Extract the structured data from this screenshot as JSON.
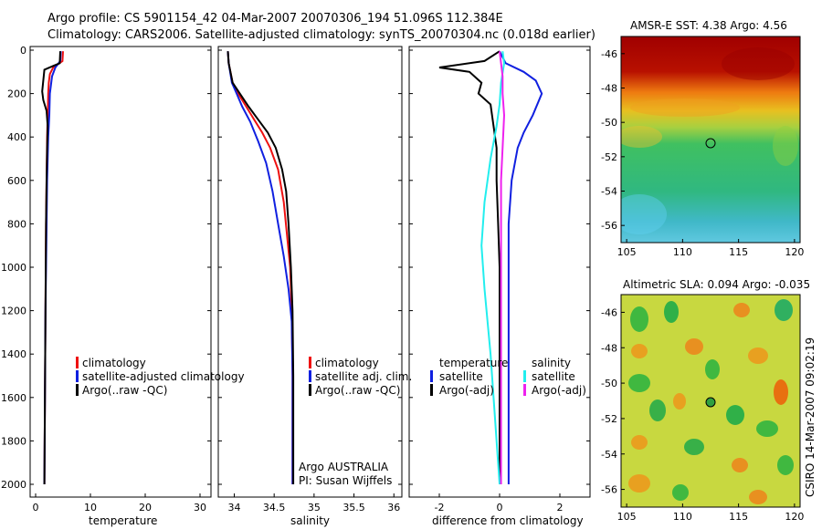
{
  "title_line1": "Argo profile: CS 5901154_42 04-Mar-2007 20070306_194 51.096S 112.384E",
  "title_line2": "Climatology: CARS2006. Satellite-adjusted climatology: synTS_20070304.nc (0.018d earlier)",
  "side_stamp": "CSIRO 14-Mar-2007 09:02:19",
  "colors": {
    "climatology": "#ee1111",
    "satellite": "#1020e0",
    "argo": "#000000",
    "sat_salinity": "#22eeee",
    "argo_adj_salinity": "#ee22ee",
    "marker": "#000000"
  },
  "chart_data": [
    {
      "id": "temperature",
      "type": "line",
      "xlabel": "temperature",
      "xlim": [
        -1,
        32
      ],
      "ylim": [
        2050,
        0
      ],
      "xticks": [
        0,
        10,
        20,
        30
      ],
      "yticks": [
        0,
        200,
        400,
        600,
        800,
        1000,
        1200,
        1400,
        1600,
        1800,
        2000
      ],
      "legend": [
        "climatology",
        "satellite-adjusted climatology",
        "Argo(..raw -QC)"
      ],
      "series": [
        {
          "name": "climatology",
          "color": "#ee1111",
          "x": [
            5.0,
            4.9,
            3.2,
            2.6,
            2.4,
            2.3,
            2.2,
            2.1,
            2.0,
            1.9,
            1.8,
            1.7,
            1.6
          ],
          "y": [
            5,
            50,
            80,
            110,
            150,
            200,
            300,
            400,
            600,
            800,
            1200,
            1600,
            2000
          ]
        },
        {
          "name": "satellite-adjusted climatology",
          "color": "#1020e0",
          "x": [
            4.6,
            4.5,
            3.6,
            3.0,
            2.8,
            2.6,
            2.5,
            2.3,
            2.1,
            2.0,
            1.8,
            1.7,
            1.6
          ],
          "y": [
            5,
            50,
            80,
            120,
            160,
            200,
            300,
            400,
            600,
            800,
            1200,
            1600,
            2000
          ]
        },
        {
          "name": "Argo(..raw -QC)",
          "color": "#000000",
          "x": [
            4.5,
            4.4,
            3.0,
            1.6,
            1.2,
            1.4,
            2.0,
            2.2,
            2.1,
            2.0,
            1.9,
            1.8,
            1.7,
            1.6
          ],
          "y": [
            5,
            60,
            75,
            90,
            190,
            230,
            280,
            350,
            450,
            600,
            800,
            1200,
            1600,
            2000
          ]
        }
      ]
    },
    {
      "id": "salinity",
      "type": "line",
      "xlabel": "salinity",
      "xlim": [
        33.8,
        36.1
      ],
      "ylim": [
        2050,
        0
      ],
      "xticks": [
        34,
        34.5,
        35,
        35.5,
        36
      ],
      "legend": [
        "climatology",
        "satellite adj. clim.",
        "Argo(..raw -QC)"
      ],
      "annotation": [
        "Argo AUSTRALIA",
        "PI: Susan Wijffels"
      ],
      "series": [
        {
          "name": "climatology",
          "color": "#ee1111",
          "x": [
            33.92,
            33.93,
            33.98,
            34.05,
            34.15,
            34.25,
            34.35,
            34.45,
            34.55,
            34.62,
            34.66,
            34.7,
            34.72,
            34.73,
            34.73
          ],
          "y": [
            5,
            60,
            150,
            200,
            260,
            320,
            380,
            450,
            550,
            700,
            850,
            1000,
            1200,
            1500,
            2000
          ]
        },
        {
          "name": "satellite adj. clim.",
          "color": "#1020e0",
          "x": [
            33.92,
            33.93,
            33.97,
            34.03,
            34.1,
            34.2,
            34.3,
            34.4,
            34.48,
            34.55,
            34.62,
            34.68,
            34.72,
            34.73,
            34.73
          ],
          "y": [
            5,
            60,
            150,
            200,
            260,
            330,
            420,
            520,
            650,
            800,
            950,
            1100,
            1250,
            1500,
            2000
          ]
        },
        {
          "name": "Argo(..raw -QC)",
          "color": "#000000",
          "x": [
            33.92,
            33.93,
            33.98,
            34.07,
            34.18,
            34.3,
            34.42,
            34.52,
            34.6,
            34.65,
            34.68,
            34.71,
            34.73,
            34.74,
            34.74
          ],
          "y": [
            5,
            60,
            150,
            200,
            260,
            320,
            380,
            450,
            550,
            650,
            800,
            1000,
            1200,
            1500,
            2000
          ]
        }
      ]
    },
    {
      "id": "difference",
      "type": "line",
      "xlabel": "difference from climatology",
      "xlim": [
        -3,
        3
      ],
      "ylim": [
        2050,
        0
      ],
      "xticks": [
        -2,
        0,
        2
      ],
      "legend_temperature_title": "temperature",
      "legend_salinity_title": "salinity",
      "legend": [
        "satellite",
        "Argo(-adj)",
        "satellite",
        "Argo(-adj)"
      ],
      "series": [
        {
          "name": "temperature satellite",
          "color": "#1020e0",
          "x": [
            0.0,
            0.2,
            0.8,
            1.2,
            1.4,
            1.1,
            0.8,
            0.6,
            0.4,
            0.3,
            0.3,
            0.3,
            0.3,
            0.3
          ],
          "y": [
            5,
            60,
            100,
            140,
            200,
            300,
            380,
            450,
            600,
            800,
            1000,
            1400,
            1800,
            2000
          ]
        },
        {
          "name": "temperature Argo(-adj)",
          "color": "#000000",
          "x": [
            0.0,
            -0.5,
            -2.0,
            -1.0,
            -0.6,
            -0.7,
            -0.3,
            -0.2,
            -0.1,
            -0.1,
            -0.05,
            0.0,
            0.0,
            0.0,
            0.0
          ],
          "y": [
            5,
            50,
            80,
            100,
            150,
            200,
            250,
            350,
            450,
            600,
            800,
            1000,
            1400,
            1800,
            2000
          ]
        },
        {
          "name": "salinity satellite",
          "color": "#22eeee",
          "x": [
            0.1,
            0.15,
            0.05,
            0.0,
            -0.1,
            -0.3,
            -0.5,
            -0.6,
            -0.5,
            -0.3,
            -0.1,
            0.0
          ],
          "y": [
            5,
            60,
            150,
            250,
            350,
            500,
            700,
            900,
            1100,
            1400,
            1800,
            2000
          ]
        },
        {
          "name": "salinity Argo(-adj)",
          "color": "#ee22ee",
          "x": [
            0.0,
            0.05,
            0.1,
            0.1,
            0.15,
            0.1,
            0.05,
            0.05,
            0.05,
            0.05
          ],
          "y": [
            5,
            60,
            120,
            200,
            300,
            450,
            600,
            1000,
            1500,
            2000
          ]
        }
      ]
    },
    {
      "id": "sst_map",
      "type": "heatmap",
      "title": "AMSR-E SST: 4.38 Argo: 4.56",
      "xlim": [
        104.5,
        120.5
      ],
      "ylim": [
        -57,
        -45
      ],
      "xticks": [
        105,
        110,
        115,
        120
      ],
      "yticks": [
        -46,
        -48,
        -50,
        -52,
        -54,
        -56
      ],
      "marker": {
        "lon": 112.384,
        "lat": -51.096
      }
    },
    {
      "id": "sla_map",
      "type": "heatmap",
      "title": "Altimetric SLA: 0.094 Argo: -0.035",
      "xlim": [
        104.5,
        120.5
      ],
      "ylim": [
        -57,
        -45
      ],
      "xticks": [
        105,
        110,
        115,
        120
      ],
      "yticks": [
        -46,
        -48,
        -50,
        -52,
        -54,
        -56
      ],
      "marker": {
        "lon": 112.384,
        "lat": -51.096
      }
    }
  ]
}
